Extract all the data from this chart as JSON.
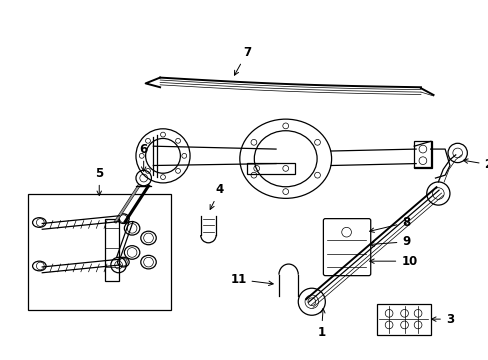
{
  "background_color": "#ffffff",
  "line_color": "#000000",
  "figure_width": 4.89,
  "figure_height": 3.6,
  "dpi": 100,
  "font_size": 8.5,
  "font_size_small": 7.5,
  "lw_thin": 0.5,
  "lw_med": 0.9,
  "lw_thick": 1.4,
  "lw_heavy": 2.2
}
